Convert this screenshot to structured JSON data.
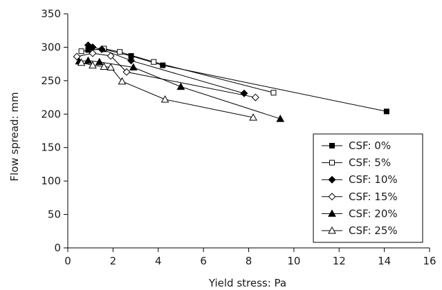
{
  "chart_data": {
    "type": "scatter",
    "title": "",
    "xlabel": "Yield stress: Pa",
    "ylabel": "Flow spread: mm",
    "xlim": [
      0,
      16
    ],
    "ylim": [
      0,
      350
    ],
    "xticks": [
      0,
      2,
      4,
      6,
      8,
      10,
      12,
      14,
      16
    ],
    "yticks": [
      0,
      50,
      100,
      150,
      200,
      250,
      300,
      350
    ],
    "grid": false,
    "legend_position": "bottom-right",
    "series": [
      {
        "name": "CSF: 0%",
        "marker": "square-filled",
        "x": [
          0.9,
          1.6,
          2.8,
          4.2,
          14.1
        ],
        "y": [
          296,
          297,
          287,
          273,
          204
        ]
      },
      {
        "name": "CSF: 5%",
        "marker": "square-open",
        "x": [
          0.6,
          1.6,
          2.3,
          3.8,
          9.1
        ],
        "y": [
          294,
          298,
          293,
          278,
          232
        ]
      },
      {
        "name": "CSF: 10%",
        "marker": "diamond-filled",
        "x": [
          0.9,
          1.1,
          1.5,
          2.8,
          7.8
        ],
        "y": [
          303,
          300,
          297,
          280,
          231
        ]
      },
      {
        "name": "CSF: 15%",
        "marker": "diamond-open",
        "x": [
          0.4,
          1.1,
          1.9,
          2.6,
          8.3
        ],
        "y": [
          286,
          291,
          287,
          263,
          225
        ]
      },
      {
        "name": "CSF: 20%",
        "marker": "triangle-filled",
        "x": [
          0.5,
          0.9,
          1.4,
          2.9,
          5.0,
          9.4
        ],
        "y": [
          279,
          280,
          278,
          270,
          241,
          193
        ]
      },
      {
        "name": "CSF: 25%",
        "marker": "triangle-open",
        "x": [
          0.6,
          1.1,
          1.6,
          1.9,
          2.4,
          4.3,
          8.2
        ],
        "y": [
          277,
          273,
          271,
          270,
          249,
          222,
          195
        ]
      }
    ]
  }
}
